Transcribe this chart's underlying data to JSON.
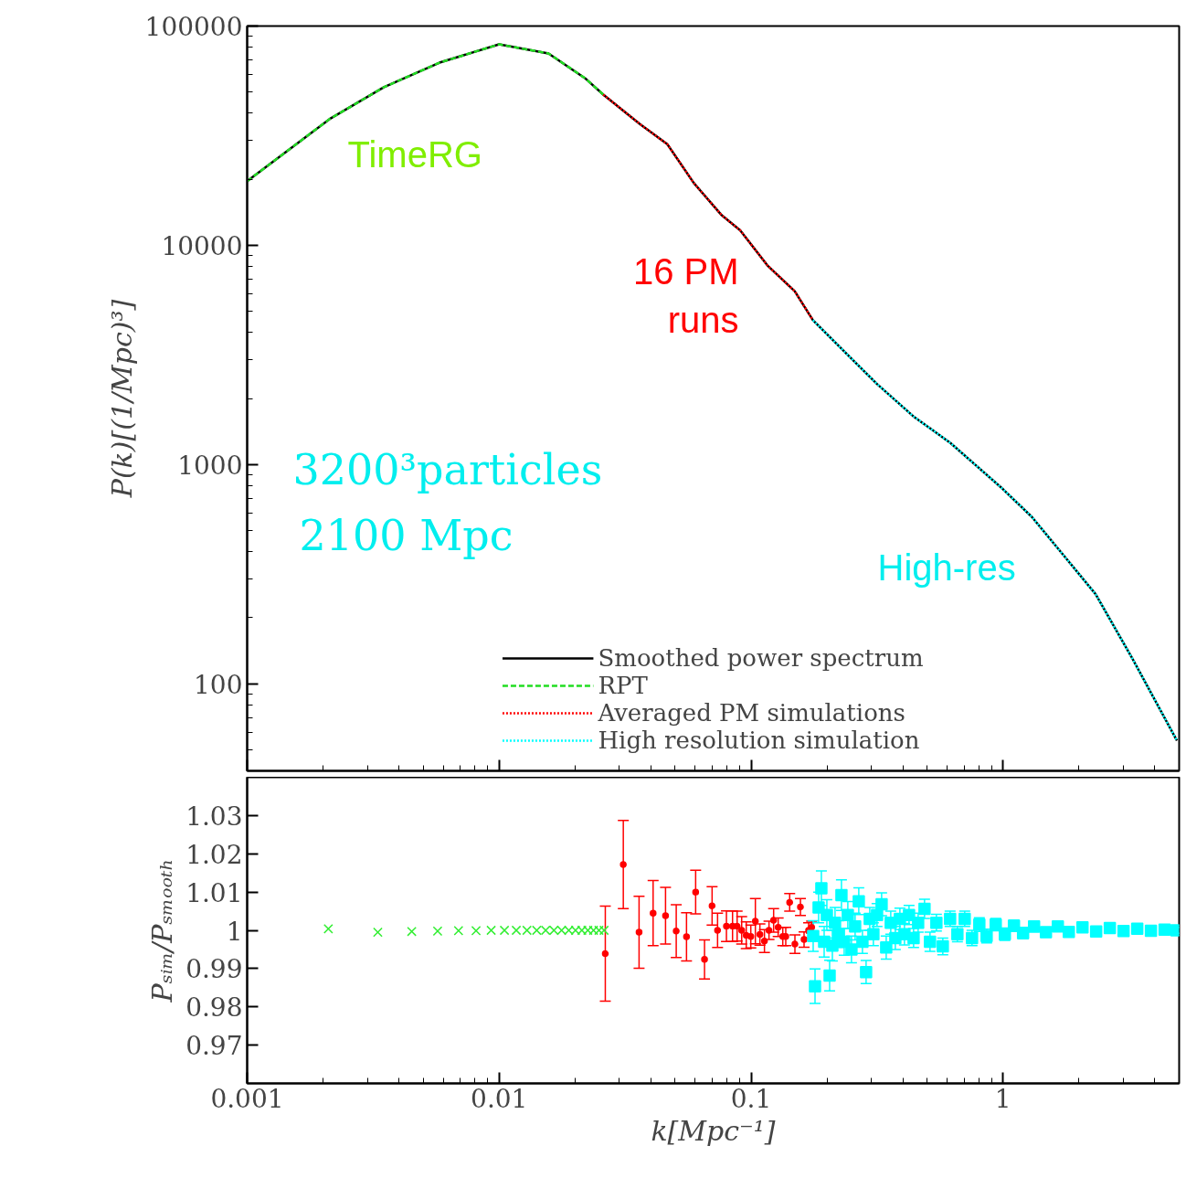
{
  "chart_data": [
    {
      "type": "line",
      "ylabel": "P(k)[(1/Mpc)³]",
      "log": "xy",
      "xlim": [
        0.001,
        5
      ],
      "ylim": [
        40,
        100000
      ],
      "xticks": [
        0.001,
        0.01,
        0.1,
        1
      ],
      "yticks": [
        100,
        1000,
        10000,
        100000
      ],
      "tick_labels": "y",
      "grid": false,
      "legend": "bottom",
      "series": [
        {
          "name": "Smoothed power spectrum",
          "color": "#000000",
          "line_style": "solid",
          "x": [
            0.001,
            0.00212,
            0.00349,
            0.0058,
            0.01,
            0.0157,
            0.0219,
            0.0259,
            0.0361,
            0.0465,
            0.0593,
            0.0765,
            0.0905,
            0.116,
            0.149,
            0.176,
            0.246,
            0.316,
            0.44,
            0.62,
            1,
            1.3,
            1.65,
            2.33,
            3.25,
            4.9
          ],
          "values": [
            19600,
            37600,
            52600,
            68100,
            82500,
            75000,
            57900,
            48700,
            35800,
            28900,
            19200,
            13700,
            11700,
            8100,
            6170,
            4550,
            3100,
            2330,
            1660,
            1250,
            771,
            577,
            414,
            256,
            131,
            55
          ]
        },
        {
          "name": "RPT",
          "color": "#22dd22",
          "line_style": "dashed",
          "x": [
            0.001,
            0.00212,
            0.00349,
            0.0058,
            0.01,
            0.0157,
            0.0219,
            0.0259
          ],
          "values": [
            19600,
            37600,
            52600,
            68100,
            82500,
            75000,
            57900,
            48700
          ]
        },
        {
          "name": "Averaged PM simulations",
          "color": "#ff0000",
          "line_style": "dotted",
          "x": [
            0.0259,
            0.0361,
            0.0465,
            0.0593,
            0.0765,
            0.0905,
            0.116,
            0.149,
            0.176
          ],
          "values": [
            48700,
            35800,
            28900,
            19200,
            13700,
            11700,
            8100,
            6170,
            4550
          ]
        },
        {
          "name": "High resolution simulation",
          "color": "#00ffff",
          "line_style": "dotted",
          "x": [
            0.176,
            0.246,
            0.316,
            0.44,
            0.62,
            1,
            1.3,
            1.65,
            2.33,
            3.25,
            4.9
          ],
          "values": [
            4550,
            3100,
            2330,
            1660,
            1250,
            771,
            577,
            414,
            256,
            131,
            55
          ]
        }
      ],
      "annotations": [
        "TimeRG",
        "16 PM\nruns",
        "3200³particles",
        "2100 Mpc",
        "High-res"
      ]
    },
    {
      "type": "scatter",
      "xlabel": "k[Mpc⁻¹]",
      "ylabel": "Pₛᵢₘ/Pₛₘₒₒₜₕ",
      "log": "x",
      "xlim": [
        0.001,
        5
      ],
      "ylim": [
        0.96,
        1.04
      ],
      "xticks": [
        0.001,
        0.01,
        0.1,
        1
      ],
      "yticks": [
        0.97,
        0.98,
        0.99,
        1,
        1.01,
        1.02,
        1.03
      ],
      "grid": false,
      "legend": false,
      "series": [
        {
          "color": "#33ee33",
          "marker": "cross",
          "x": [
            0.0021,
            0.0033,
            0.0045,
            0.0057,
            0.0069,
            0.0081,
            0.0093,
            0.0105,
            0.0117,
            0.0129,
            0.0141,
            0.0153,
            0.0165,
            0.0177,
            0.0189,
            0.0201,
            0.0213,
            0.0225,
            0.0237,
            0.0249,
            0.0261
          ],
          "values": [
            1.0004,
            0.9995,
            0.9997,
            0.9998,
            0.9999,
            0.9999,
            1.0,
            1.0,
            1.0,
            1.0,
            1.0,
            1.0,
            1.0,
            1.0,
            1.0,
            1.0,
            1.0,
            1.0,
            1.0,
            1.0,
            1.0
          ]
        },
        {
          "color": "#ff0000",
          "marker": "circle",
          "x": [
            0.02639,
            0.03111,
            0.03593,
            0.04085,
            0.04576,
            0.05046,
            0.05543,
            0.06026,
            0.06535,
            0.07003,
            0.07362,
            0.07984,
            0.08442,
            0.08803,
            0.09177,
            0.09568,
            0.09975,
            0.104,
            0.1084,
            0.113,
            0.1178,
            0.1229,
            0.1281,
            0.1336,
            0.1373,
            0.1423,
            0.1493,
            0.157,
            0.1623,
            0.1692,
            0.1739
          ],
          "values": [
            0.9939,
            1.0172,
            0.9995,
            1.0045,
            1.0038,
            0.9998,
            0.9983,
            1.01,
            0.9924,
            1.0064,
            1.0,
            1.0011,
            1.0011,
            1.0011,
            1.0,
            0.9987,
            0.9984,
            1.0024,
            0.9989,
            0.9972,
            1.0,
            1.0026,
            1.0008,
            0.9984,
            0.9984,
            1.0073,
            0.9964,
            1.0061,
            0.9976,
            1.0,
            1.0008
          ],
          "errors": [
            0.0124,
            0.0115,
            0.0094,
            0.0085,
            0.0074,
            0.0069,
            0.0063,
            0.0057,
            0.0051,
            0.005,
            0.0045,
            0.004,
            0.004,
            0.0039,
            0.0036,
            0.0035,
            0.003,
            0.0059,
            0.0028,
            0.003,
            0.0024,
            0.0031,
            0.0024,
            0.0024,
            0.0024,
            0.0023,
            0.0024,
            0.0022,
            0.002,
            0.002,
            0.0016
          ]
        },
        {
          "color": "#00ffff",
          "marker": "square",
          "x": [
            0.1764,
            0.1794,
            0.1854,
            0.1901,
            0.195,
            0.1999,
            0.205,
            0.2102,
            0.2154,
            0.2227,
            0.2284,
            0.2342,
            0.2421,
            0.2503,
            0.2588,
            0.2676,
            0.2767,
            0.2861,
            0.2958,
            0.3058,
            0.3162,
            0.3297,
            0.3438,
            0.3584,
            0.3737,
            0.3896,
            0.4062,
            0.4236,
            0.4416,
            0.4603,
            0.488,
            0.513,
            0.5439,
            0.5767,
            0.6165,
            0.659,
            0.7045,
            0.7532,
            0.8052,
            0.8608,
            0.9355,
            1.0167,
            1.105,
            1.201,
            1.328,
            1.48,
            1.65,
            1.824,
            2.067,
            2.342,
            2.654,
            3.008,
            3.409,
            3.864,
            4.378,
            4.88
          ],
          "values": [
            0.9985,
            0.9854,
            1.006,
            1.011,
            0.997,
            1.004,
            0.9882,
            0.996,
            1.002,
            0.999,
            1.0092,
            0.997,
            1.004,
            0.995,
            1.001,
            1.0076,
            0.997,
            0.9891,
            1.003,
            0.999,
            1.004,
            1.0068,
            0.9955,
            1.002,
            0.998,
            1.003,
            0.999,
            1.004,
            0.998,
            1.002,
            1.0056,
            0.997,
            1.002,
            0.9958,
            1.003,
            0.999,
            1.003,
            0.998,
            1.0015,
            0.9985,
            1.0015,
            0.999,
            1.0012,
            0.9993,
            1.001,
            0.9995,
            1.001,
            0.9996,
            1.0008,
            0.9997,
            1.0006,
            0.9998,
            1.0004,
            0.9999,
            1.0002,
            1.0
          ],
          "errors": [
            0.004,
            0.0045,
            0.004,
            0.0045,
            0.004,
            0.004,
            0.004,
            0.004,
            0.004,
            0.0035,
            0.004,
            0.0035,
            0.0035,
            0.0035,
            0.0035,
            0.0035,
            0.003,
            0.003,
            0.003,
            0.003,
            0.003,
            0.003,
            0.003,
            0.003,
            0.003,
            0.0028,
            0.0028,
            0.0025,
            0.0025,
            0.0025,
            0.0025,
            0.0025,
            0.0022,
            0.0022,
            0.002,
            0.002,
            0.002,
            0.002,
            0.0018,
            0.0018,
            0.0016,
            0.0016,
            0.0015,
            0.0015,
            0.0014,
            0.0013,
            0.0012,
            0.0012,
            0.0011,
            0.001,
            0.001,
            0.0009,
            0.0009,
            0.0008,
            0.0008,
            0.0008
          ]
        }
      ]
    }
  ]
}
